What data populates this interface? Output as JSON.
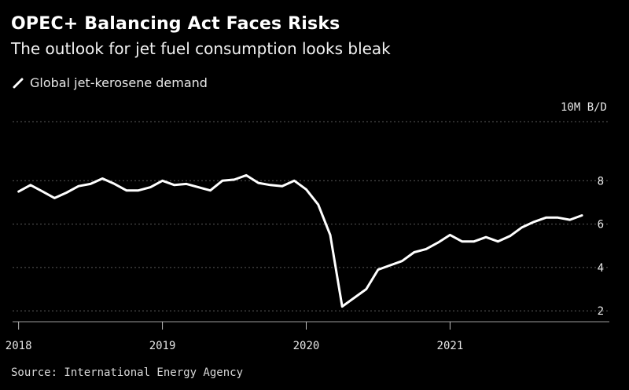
{
  "header": {
    "title": "OPEC+ Balancing Act Faces Risks",
    "subtitle": "The outlook for jet fuel consumption looks bleak"
  },
  "legend": {
    "label": "Global jet-kerosene demand"
  },
  "footer": {
    "source": "Source: International Energy Agency"
  },
  "colors": {
    "background": "#000000",
    "line": "#ffffff",
    "grid": "#5a5a5a",
    "text": "#ffffff"
  },
  "chart_data": {
    "type": "line",
    "title": "OPEC+ Balancing Act Faces Risks",
    "subtitle": "The outlook for jet fuel consumption looks bleak",
    "ylabel": "10M B/D",
    "ylim": [
      1.5,
      10
    ],
    "yticks": [
      2,
      4,
      6,
      8
    ],
    "xlim": [
      2017.98,
      2021.96
    ],
    "xticks": [
      2018,
      2019,
      2020,
      2021
    ],
    "xtick_labels": [
      "2018",
      "2019",
      "2020",
      "2021"
    ],
    "grid": true,
    "legend_position": "top-left",
    "series": [
      {
        "name": "Global jet-kerosene demand",
        "x": [
          2018.0,
          2018.083,
          2018.167,
          2018.25,
          2018.333,
          2018.417,
          2018.5,
          2018.583,
          2018.667,
          2018.75,
          2018.833,
          2018.917,
          2019.0,
          2019.083,
          2019.167,
          2019.25,
          2019.333,
          2019.417,
          2019.5,
          2019.583,
          2019.667,
          2019.75,
          2019.833,
          2019.917,
          2020.0,
          2020.083,
          2020.167,
          2020.25,
          2020.333,
          2020.417,
          2020.5,
          2020.583,
          2020.667,
          2020.75,
          2020.833,
          2020.917,
          2021.0,
          2021.083,
          2021.167,
          2021.25,
          2021.333,
          2021.417,
          2021.5,
          2021.583,
          2021.667,
          2021.75,
          2021.833,
          2021.917
        ],
        "y": [
          7.5,
          7.8,
          7.5,
          7.2,
          7.45,
          7.75,
          7.85,
          8.1,
          7.85,
          7.55,
          7.55,
          7.7,
          8.0,
          7.8,
          7.85,
          7.7,
          7.55,
          8.0,
          8.05,
          8.25,
          7.9,
          7.8,
          7.75,
          8.0,
          7.6,
          6.9,
          5.5,
          2.2,
          2.6,
          3.0,
          3.9,
          4.1,
          4.3,
          4.7,
          4.85,
          5.15,
          5.5,
          5.2,
          5.2,
          5.4,
          5.2,
          5.45,
          5.85,
          6.1,
          6.3,
          6.3,
          6.2,
          6.4
        ]
      }
    ]
  }
}
